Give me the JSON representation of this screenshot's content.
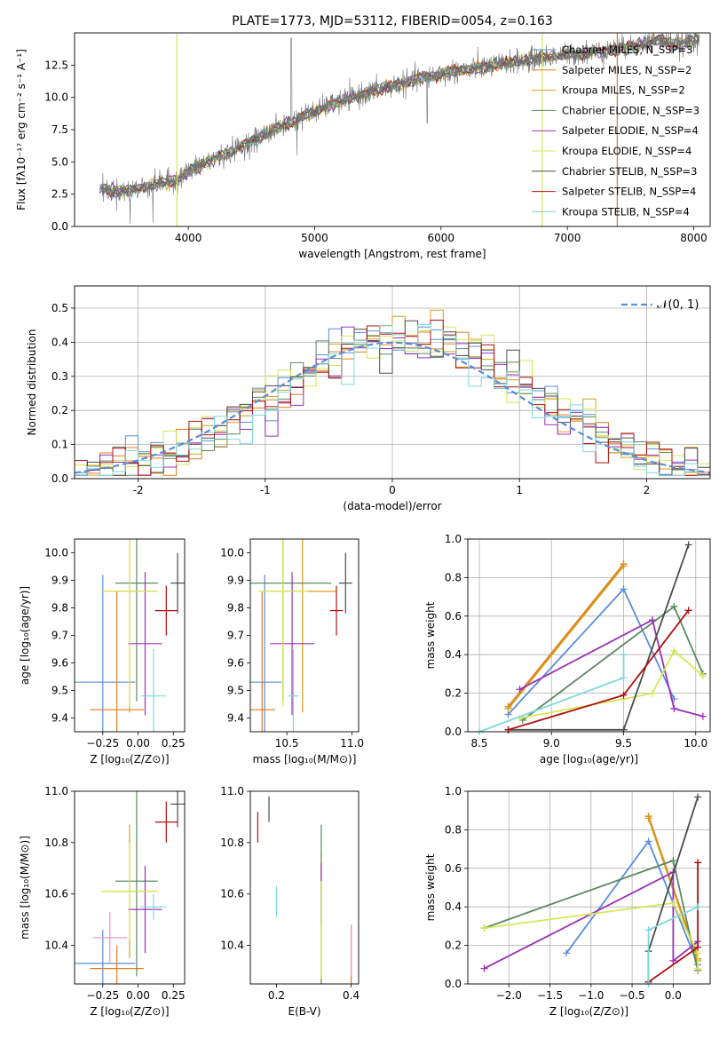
{
  "colors": [
    "#5b8dd9",
    "#e07b22",
    "#d4a017",
    "#5a8a62",
    "#9b30b8",
    "#d4e857",
    "#4d4d4d",
    "#b01010",
    "#7dd8de"
  ],
  "chart_data": [
    {
      "id": "spectrum",
      "type": "line",
      "title": "PLATE=1773, MJD=53112, FIBERID=0054, z=0.163",
      "xlabel": "wavelength [Angstrom, rest frame]",
      "ylabel": "Flux [fλ10⁻¹⁷ erg cm⁻² s⁻¹ A⁻¹]",
      "xlim": [
        3100,
        8130
      ],
      "ylim": [
        0,
        15
      ],
      "xticks": [
        4000,
        5000,
        6000,
        7000,
        8000
      ],
      "yticks": [
        0.0,
        2.5,
        5.0,
        7.5,
        10.0,
        12.5
      ],
      "continuum": [
        [
          3300,
          2.9
        ],
        [
          3500,
          2.7
        ],
        [
          3700,
          3.2
        ],
        [
          3900,
          3.6
        ],
        [
          4100,
          4.8
        ],
        [
          4300,
          5.6
        ],
        [
          4500,
          6.6
        ],
        [
          4700,
          7.6
        ],
        [
          4900,
          8.5
        ],
        [
          5100,
          9.3
        ],
        [
          5300,
          10.0
        ],
        [
          5500,
          10.6
        ],
        [
          5700,
          11.1
        ],
        [
          5900,
          11.6
        ],
        [
          6100,
          12.0
        ],
        [
          6300,
          12.3
        ],
        [
          6500,
          12.6
        ],
        [
          6700,
          12.9
        ],
        [
          6900,
          13.2
        ],
        [
          7100,
          13.4
        ],
        [
          7300,
          13.6
        ],
        [
          7500,
          13.9
        ],
        [
          7700,
          14.4
        ],
        [
          7900,
          14.1
        ],
        [
          8050,
          14.6
        ]
      ],
      "legend": [
        "Chabrier MILES, N_SSP=3",
        "Salpeter MILES, N_SSP=2",
        "Kroupa MILES, N_SSP=2",
        "Chabrier ELODIE, N_SSP=3",
        "Salpeter ELODIE, N_SSP=4",
        "Kroupa ELODIE, N_SSP=4",
        "Chabrier STELIB, N_SSP=3",
        "Salpeter STELIB, N_SSP=4",
        "Kroupa STELIB, N_SSP=4"
      ],
      "legend_position": "top-right"
    },
    {
      "id": "residual-histogram",
      "type": "line",
      "xlabel": "(data-model)/error",
      "ylabel": "Normed distribution",
      "xlim": [
        -2.5,
        2.5
      ],
      "ylim": [
        0,
        0.565
      ],
      "xticks": [
        -2,
        -1,
        0,
        1,
        2
      ],
      "yticks": [
        0.0,
        0.1,
        0.2,
        0.3,
        0.4,
        0.5
      ],
      "grid": true,
      "reference_curve": "𝒩(0, 1)",
      "legend_position": "top-right"
    },
    {
      "id": "age-vs-Z",
      "type": "scatter",
      "xlabel": "Z [log₁₀(Z/Z⊙)]",
      "ylabel": "age  [log₁₀(age/yr)]",
      "xlim": [
        -0.45,
        0.33
      ],
      "ylim": [
        9.35,
        10.05
      ],
      "xticks": [
        -0.25,
        0.0,
        0.25
      ],
      "xticklabels": [
        "−0.25",
        "0.00",
        "0.25"
      ],
      "yticks": [
        9.4,
        9.5,
        9.6,
        9.7,
        9.8,
        9.9,
        10.0
      ],
      "points": [
        {
          "x": -0.25,
          "y": 9.53,
          "xerr": 0.23,
          "yerr": 0.39
        },
        {
          "x": -0.15,
          "y": 9.43,
          "xerr": 0.19,
          "yerr": 0.43
        },
        {
          "x": -0.06,
          "y": 9.86,
          "xerr": 0.19,
          "yerr": 0.44
        },
        {
          "x": -0.01,
          "y": 9.89,
          "xerr": 0.15,
          "yerr": 0.43
        },
        {
          "x": 0.05,
          "y": 9.67,
          "xerr": 0.12,
          "yerr": 0.26
        },
        {
          "x": -0.06,
          "y": 9.86,
          "xerr": 0.2,
          "yerr": 0.42
        },
        {
          "x": 0.28,
          "y": 9.89,
          "xerr": 0.05,
          "yerr": 0.11
        },
        {
          "x": 0.2,
          "y": 9.79,
          "xerr": 0.08,
          "yerr": 0.09
        },
        {
          "x": 0.11,
          "y": 9.48,
          "xerr": 0.09,
          "yerr": 0.17
        }
      ]
    },
    {
      "id": "age-vs-mass",
      "type": "scatter",
      "xlabel": "mass [log₁₀(M/M⊙)]",
      "ylabel": "",
      "xlim": [
        10.22,
        11.05
      ],
      "ylim": [
        9.35,
        10.05
      ],
      "xticks": [
        10.5,
        11.0
      ],
      "xticklabels": [
        "10.5",
        "11.0"
      ],
      "yticks": [
        9.4,
        9.5,
        9.6,
        9.7,
        9.8,
        9.9,
        10.0
      ],
      "points": [
        {
          "x": 10.33,
          "y": 9.53,
          "xerr": 0.13,
          "yerr": 0.39
        },
        {
          "x": 10.31,
          "y": 9.43,
          "xerr": 0.1,
          "yerr": 0.43
        },
        {
          "x": 10.62,
          "y": 9.86,
          "xerr": 0.26,
          "yerr": 0.44
        },
        {
          "x": 10.47,
          "y": 9.89,
          "xerr": 0.37,
          "yerr": 0.43
        },
        {
          "x": 10.54,
          "y": 9.67,
          "xerr": 0.17,
          "yerr": 0.26
        },
        {
          "x": 10.47,
          "y": 9.86,
          "xerr": 0.19,
          "yerr": 0.42
        },
        {
          "x": 10.95,
          "y": 9.89,
          "xerr": 0.05,
          "yerr": 0.11
        },
        {
          "x": 10.88,
          "y": 9.79,
          "xerr": 0.05,
          "yerr": 0.09
        },
        {
          "x": 10.55,
          "y": 9.48,
          "xerr": 0.04,
          "yerr": 0.17
        }
      ]
    },
    {
      "id": "weight-vs-age",
      "type": "line",
      "xlabel": "age  [log₁₀(age/yr)]",
      "ylabel": "mass weight",
      "xlim": [
        8.42,
        10.1
      ],
      "ylim": [
        0,
        1.0
      ],
      "xticks": [
        8.5,
        9.0,
        9.5,
        10.0
      ],
      "xticklabels": [
        "8.5",
        "9.0",
        "9.5",
        "10.0"
      ],
      "yticks": [
        0.0,
        0.2,
        0.4,
        0.6,
        0.8,
        1.0
      ],
      "grid": true,
      "series": [
        {
          "x": [
            8.7,
            9.5,
            9.85
          ],
          "y": [
            0.09,
            0.74,
            0.17
          ]
        },
        {
          "x": [
            8.7,
            9.5
          ],
          "y": [
            0.13,
            0.87
          ]
        },
        {
          "x": [
            8.7,
            9.5
          ],
          "y": [
            0.12,
            0.86
          ]
        },
        {
          "x": [
            8.8,
            9.85,
            10.05
          ],
          "y": [
            0.06,
            0.65,
            0.3
          ]
        },
        {
          "x": [
            8.78,
            9.7,
            9.85,
            10.05
          ],
          "y": [
            0.22,
            0.58,
            0.12,
            0.08
          ]
        },
        {
          "x": [
            8.78,
            9.5,
            9.7,
            9.85,
            10.05
          ],
          "y": [
            0.07,
            0.17,
            0.2,
            0.42,
            0.29
          ]
        },
        {
          "x": [
            8.7,
            9.5,
            9.95
          ],
          "y": [
            0.01,
            0.01,
            0.97
          ]
        },
        {
          "x": [
            8.7,
            9.5,
            9.95
          ],
          "y": [
            0.01,
            0.19,
            0.63
          ]
        },
        {
          "x": [
            8.5,
            9.5,
            9.5
          ],
          "y": [
            0.0,
            0.28,
            0.4
          ]
        }
      ]
    },
    {
      "id": "mass-vs-Z",
      "type": "scatter",
      "xlabel": "Z [log₁₀(Z/Z⊙)]",
      "ylabel": "mass [log₁₀(M/M⊙)]",
      "xlim": [
        -0.45,
        0.33
      ],
      "ylim": [
        10.25,
        11.0
      ],
      "xticks": [
        -0.25,
        0.0,
        0.25
      ],
      "xticklabels": [
        "−0.25",
        "0.00",
        "0.25"
      ],
      "yticks": [
        10.4,
        10.6,
        10.8,
        11.0
      ],
      "points": [
        {
          "x": -0.25,
          "y": 10.33,
          "xerr": 0.23,
          "yerr": 0.13
        },
        {
          "x": -0.15,
          "y": 10.31,
          "xerr": 0.19,
          "yerr": 0.09
        },
        {
          "x": -0.06,
          "y": 10.61,
          "xerr": 0.19,
          "yerr": 0.26
        },
        {
          "x": -0.01,
          "y": 10.65,
          "xerr": 0.15,
          "yerr": 0.37
        },
        {
          "x": 0.05,
          "y": 10.54,
          "xerr": 0.12,
          "yerr": 0.17
        },
        {
          "x": -0.06,
          "y": 10.61,
          "xerr": 0.2,
          "yerr": 0.19
        },
        {
          "x": 0.28,
          "y": 10.95,
          "xerr": 0.05,
          "yerr": 0.09
        },
        {
          "x": 0.2,
          "y": 10.88,
          "xerr": 0.08,
          "yerr": 0.08
        },
        {
          "x": 0.11,
          "y": 10.55,
          "xerr": 0.09,
          "yerr": 0.05
        },
        {
          "x": -0.2,
          "y": 10.43,
          "xerr": 0.12,
          "yerr": 0.1
        }
      ]
    },
    {
      "id": "mass-vs-EBV",
      "type": "scatter",
      "xlabel": "E(B-V)",
      "ylabel": "",
      "xlim": [
        0.13,
        0.42
      ],
      "ylim": [
        10.25,
        11.0
      ],
      "xticks": [
        0.2,
        0.4
      ],
      "xticklabels": [
        "0.2",
        "0.4"
      ],
      "yticks": [
        10.4,
        10.6,
        10.8,
        11.0
      ],
      "points": [
        {
          "x": 0.4,
          "y": 10.33,
          "xerr": 0,
          "yerr": 0.13
        },
        {
          "x": 0.4,
          "y": 10.31,
          "xerr": 0,
          "yerr": 0.17
        },
        {
          "x": 0.32,
          "y": 10.5,
          "xerr": 0,
          "yerr": 0.26
        },
        {
          "x": 0.32,
          "y": 10.5,
          "xerr": 0,
          "yerr": 0.37
        },
        {
          "x": 0.32,
          "y": 10.6,
          "xerr": 0,
          "yerr": 0.12
        },
        {
          "x": 0.32,
          "y": 10.46,
          "xerr": 0,
          "yerr": 0.19
        },
        {
          "x": 0.18,
          "y": 10.93,
          "xerr": 0,
          "yerr": 0.05
        },
        {
          "x": 0.15,
          "y": 10.86,
          "xerr": 0,
          "yerr": 0.06
        },
        {
          "x": 0.2,
          "y": 10.57,
          "xerr": 0,
          "yerr": 0.06
        },
        {
          "x": 0.4,
          "y": 10.38,
          "xerr": 0,
          "yerr": 0.1
        }
      ]
    },
    {
      "id": "weight-vs-Z",
      "type": "line",
      "xlabel": "Z [log₁₀(Z/Z⊙)]",
      "ylabel": "mass weight",
      "xlim": [
        -2.5,
        0.45
      ],
      "ylim": [
        0,
        1.0
      ],
      "xticks": [
        -2.0,
        -1.5,
        -1.0,
        -0.5,
        0.0
      ],
      "xticklabels": [
        "−2.0",
        "−1.5",
        "−1.0",
        "−0.5",
        "0.0"
      ],
      "yticks": [
        0.0,
        0.2,
        0.4,
        0.6,
        0.8,
        1.0
      ],
      "grid": true,
      "series": [
        {
          "x": [
            -1.3,
            -0.3,
            0.3
          ],
          "y": [
            0.16,
            0.74,
            0.1
          ]
        },
        {
          "x": [
            -0.3,
            0.3
          ],
          "y": [
            0.87,
            0.13
          ]
        },
        {
          "x": [
            -0.3,
            0.3
          ],
          "y": [
            0.86,
            0.12
          ]
        },
        {
          "x": [
            -2.3,
            0.0,
            0.3
          ],
          "y": [
            0.29,
            0.64,
            0.07
          ]
        },
        {
          "x": [
            -2.3,
            0.0,
            0.0,
            0.3
          ],
          "y": [
            0.08,
            0.58,
            0.12,
            0.22
          ]
        },
        {
          "x": [
            -2.3,
            0.0,
            0.3,
            0.3
          ],
          "y": [
            0.29,
            0.42,
            0.16,
            0.08
          ]
        },
        {
          "x": [
            -0.3,
            -0.3,
            0.3
          ],
          "y": [
            0.01,
            0.17,
            0.97
          ]
        },
        {
          "x": [
            -0.3,
            0.3,
            0.3
          ],
          "y": [
            0.01,
            0.19,
            0.63
          ]
        },
        {
          "x": [
            -0.3,
            -0.3,
            0.3
          ],
          "y": [
            0.0,
            0.28,
            0.4
          ]
        }
      ]
    }
  ]
}
